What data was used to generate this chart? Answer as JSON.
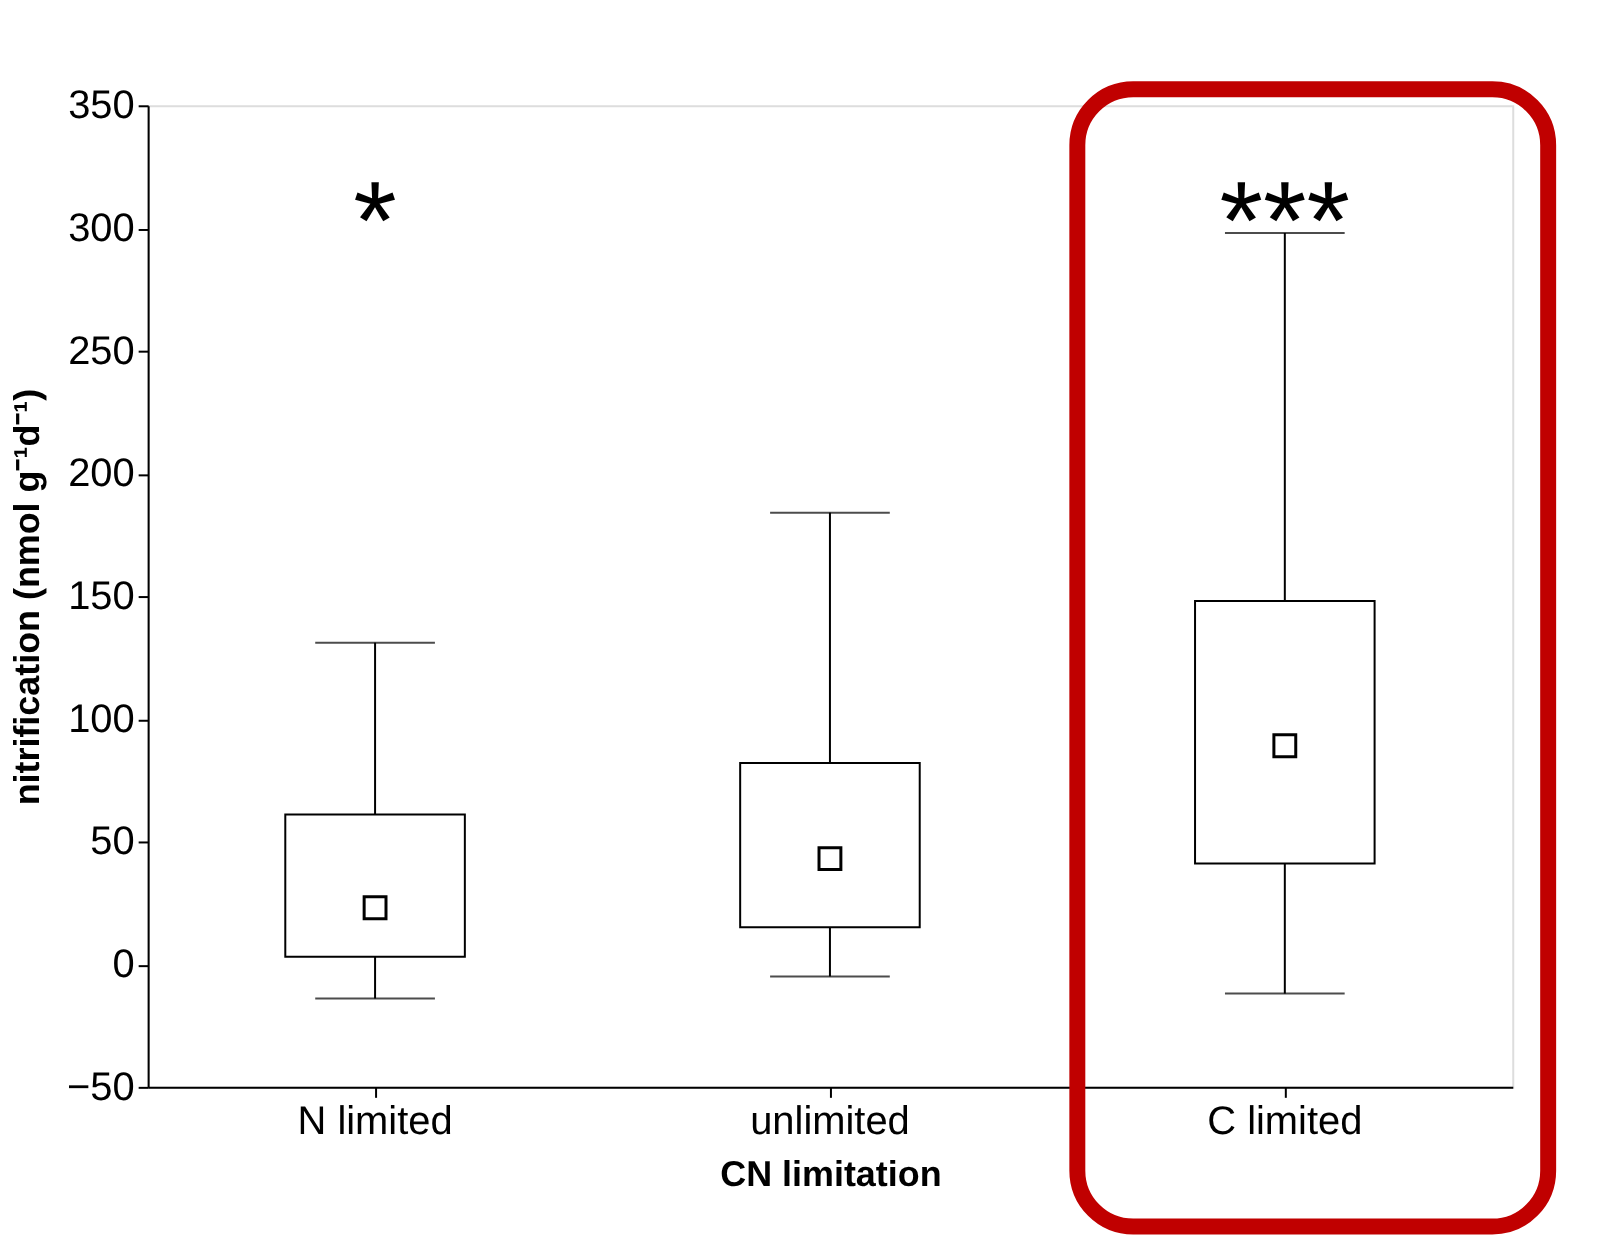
{
  "chart_data": {
    "type": "box",
    "xlabel": "CN limitation",
    "ylabel": "nitrification (nmol g⁻¹d⁻¹)",
    "categories": [
      "N limited",
      "unlimited",
      "C limited"
    ],
    "boxes": [
      {
        "low": -14,
        "q1": 3,
        "median": 23,
        "q3": 61,
        "high": 131
      },
      {
        "low": -5,
        "q1": 15,
        "median": 43,
        "q3": 82,
        "high": 184
      },
      {
        "low": -12,
        "q1": 41,
        "median": 89,
        "q3": 148,
        "high": 298
      }
    ],
    "ylim": [
      -50,
      350
    ],
    "yticks": [
      -50,
      0,
      50,
      100,
      150,
      200,
      250,
      300,
      350
    ],
    "grid": false,
    "marker": "square",
    "annotations": [
      "*",
      "***"
    ]
  }
}
